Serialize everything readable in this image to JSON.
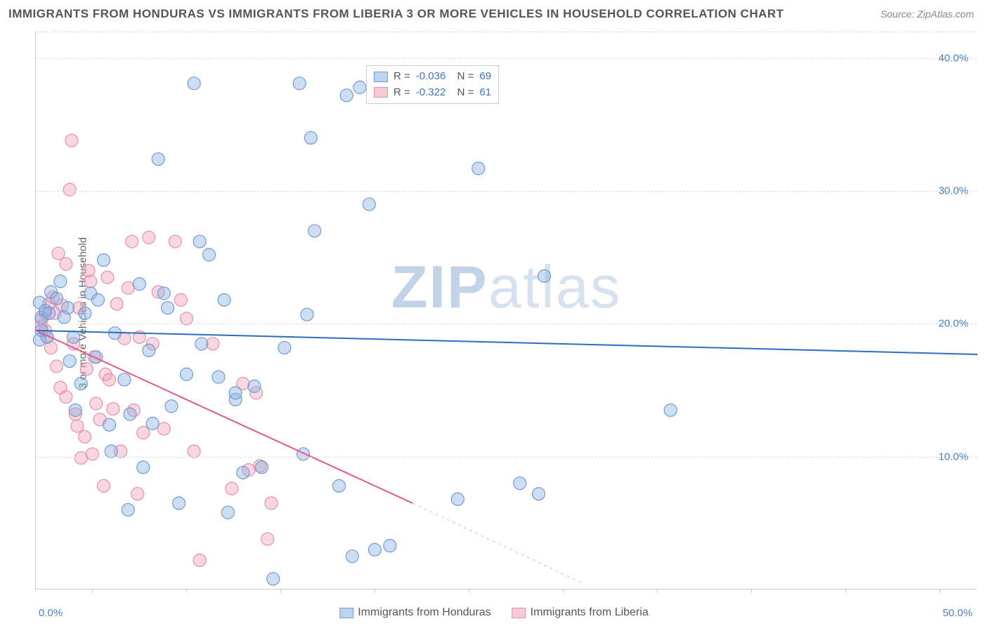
{
  "title": "IMMIGRANTS FROM HONDURAS VS IMMIGRANTS FROM LIBERIA 3 OR MORE VEHICLES IN HOUSEHOLD CORRELATION CHART",
  "source": "Source: ZipAtlas.com",
  "ylabel": "3 or more Vehicles in Household",
  "watermark_bold": "ZIP",
  "watermark_rest": "atlas",
  "chart": {
    "type": "scatter",
    "xlim": [
      0,
      50
    ],
    "ylim": [
      0,
      42
    ],
    "ytick_values": [
      10,
      20,
      30,
      40
    ],
    "ytick_labels": [
      "10.0%",
      "20.0%",
      "30.0%",
      "40.0%"
    ],
    "xtick_positions": [
      3,
      8,
      13,
      18,
      23,
      28,
      33,
      38,
      43,
      48
    ],
    "xtick_label_left": "0.0%",
    "xtick_label_right": "50.0%",
    "grid_color": "#dddddd",
    "background_color": "#ffffff",
    "series": [
      {
        "name": "Immigrants from Honduras",
        "fill": "rgba(137,175,223,0.42)",
        "stroke": "#6f9cd6",
        "marker_radius": 9,
        "R": "-0.036",
        "N": "69",
        "trend": {
          "x1": 0,
          "y1": 19.5,
          "x2": 50,
          "y2": 17.7,
          "color": "#2e6cc0",
          "width": 2
        },
        "points": [
          [
            0.3,
            20.5
          ],
          [
            0.3,
            19.5
          ],
          [
            0.2,
            21.6
          ],
          [
            0.5,
            21.0
          ],
          [
            0.6,
            19.0
          ],
          [
            0.2,
            18.8
          ],
          [
            0.7,
            20.8
          ],
          [
            0.8,
            22.4
          ],
          [
            1.1,
            21.9
          ],
          [
            1.3,
            23.2
          ],
          [
            1.5,
            20.5
          ],
          [
            1.7,
            21.2
          ],
          [
            2.0,
            19.0
          ],
          [
            2.1,
            13.5
          ],
          [
            2.4,
            15.5
          ],
          [
            2.6,
            20.8
          ],
          [
            2.9,
            22.3
          ],
          [
            3.3,
            21.8
          ],
          [
            3.6,
            24.8
          ],
          [
            3.9,
            12.4
          ],
          [
            4.2,
            19.3
          ],
          [
            4.7,
            15.8
          ],
          [
            4.9,
            6.0
          ],
          [
            5.5,
            23.0
          ],
          [
            5.7,
            9.2
          ],
          [
            6.2,
            12.5
          ],
          [
            6.5,
            32.4
          ],
          [
            6.8,
            22.3
          ],
          [
            7.2,
            13.8
          ],
          [
            7.6,
            6.5
          ],
          [
            8.4,
            38.1
          ],
          [
            8.7,
            26.2
          ],
          [
            9.2,
            25.2
          ],
          [
            9.7,
            16.0
          ],
          [
            10.2,
            5.8
          ],
          [
            10.6,
            14.3
          ],
          [
            10.6,
            14.8
          ],
          [
            11.0,
            8.8
          ],
          [
            11.6,
            15.3
          ],
          [
            12.0,
            9.2
          ],
          [
            12.6,
            0.8
          ],
          [
            14.0,
            38.1
          ],
          [
            14.4,
            20.7
          ],
          [
            14.6,
            34.0
          ],
          [
            14.8,
            27.0
          ],
          [
            16.1,
            7.8
          ],
          [
            16.5,
            37.2
          ],
          [
            16.8,
            2.5
          ],
          [
            17.2,
            37.8
          ],
          [
            17.7,
            29.0
          ],
          [
            18.0,
            3.0
          ],
          [
            18.8,
            3.3
          ],
          [
            22.4,
            6.8
          ],
          [
            23.5,
            31.7
          ],
          [
            25.7,
            8.0
          ],
          [
            26.7,
            7.2
          ],
          [
            27.0,
            23.6
          ],
          [
            33.7,
            13.5
          ],
          [
            1.8,
            17.2
          ],
          [
            3.2,
            17.5
          ],
          [
            4.0,
            10.4
          ],
          [
            5.0,
            13.2
          ],
          [
            6.0,
            18.0
          ],
          [
            7.0,
            21.2
          ],
          [
            8.0,
            16.2
          ],
          [
            8.8,
            18.5
          ],
          [
            10.0,
            21.8
          ],
          [
            13.2,
            18.2
          ],
          [
            14.2,
            10.2
          ]
        ]
      },
      {
        "name": "Immigrants from Liberia",
        "fill": "rgba(238,160,180,0.42)",
        "stroke": "#e590ab",
        "marker_radius": 9,
        "R": "-0.322",
        "N": "61",
        "trend": {
          "x1": 0,
          "y1": 19.5,
          "x2_solid": 20,
          "y2_solid": 6.5,
          "x2_dash": 29,
          "y2_dash": 0.5,
          "color": "#e15b89",
          "width": 2
        },
        "points": [
          [
            0.3,
            19.8
          ],
          [
            0.3,
            20.3
          ],
          [
            0.5,
            19.5
          ],
          [
            0.5,
            20.8
          ],
          [
            0.6,
            19.0
          ],
          [
            0.7,
            21.5
          ],
          [
            0.8,
            18.2
          ],
          [
            0.9,
            22.0
          ],
          [
            1.0,
            20.8
          ],
          [
            1.1,
            16.8
          ],
          [
            1.2,
            25.3
          ],
          [
            1.3,
            15.2
          ],
          [
            1.4,
            21.4
          ],
          [
            1.6,
            24.5
          ],
          [
            1.6,
            14.5
          ],
          [
            1.8,
            30.1
          ],
          [
            1.9,
            33.8
          ],
          [
            2.0,
            18.5
          ],
          [
            2.1,
            13.2
          ],
          [
            2.2,
            12.3
          ],
          [
            2.3,
            21.2
          ],
          [
            2.4,
            9.9
          ],
          [
            2.6,
            11.5
          ],
          [
            2.7,
            16.6
          ],
          [
            2.8,
            24.0
          ],
          [
            2.9,
            23.2
          ],
          [
            3.0,
            10.2
          ],
          [
            3.1,
            17.5
          ],
          [
            3.2,
            14.0
          ],
          [
            3.4,
            12.8
          ],
          [
            3.6,
            7.8
          ],
          [
            3.7,
            16.2
          ],
          [
            3.8,
            23.5
          ],
          [
            3.9,
            15.8
          ],
          [
            4.1,
            13.6
          ],
          [
            4.3,
            21.5
          ],
          [
            4.5,
            10.4
          ],
          [
            4.7,
            18.9
          ],
          [
            4.9,
            22.7
          ],
          [
            5.1,
            26.2
          ],
          [
            5.2,
            13.5
          ],
          [
            5.4,
            7.2
          ],
          [
            5.5,
            19.0
          ],
          [
            5.7,
            11.8
          ],
          [
            6.0,
            26.5
          ],
          [
            6.2,
            18.5
          ],
          [
            6.5,
            22.4
          ],
          [
            6.8,
            12.1
          ],
          [
            7.4,
            26.2
          ],
          [
            7.7,
            21.8
          ],
          [
            8.0,
            20.4
          ],
          [
            8.4,
            10.4
          ],
          [
            8.7,
            2.2
          ],
          [
            9.4,
            18.5
          ],
          [
            10.4,
            7.6
          ],
          [
            11.0,
            15.5
          ],
          [
            11.3,
            9.0
          ],
          [
            11.7,
            14.8
          ],
          [
            11.9,
            9.3
          ],
          [
            12.3,
            3.8
          ],
          [
            12.5,
            6.5
          ]
        ]
      }
    ],
    "legend": {
      "items": [
        {
          "label": "Immigrants from Honduras",
          "fill": "rgba(137,175,223,0.55)",
          "stroke": "#6f9cd6"
        },
        {
          "label": "Immigrants from Liberia",
          "fill": "rgba(238,160,180,0.55)",
          "stroke": "#e590ab"
        }
      ]
    }
  }
}
